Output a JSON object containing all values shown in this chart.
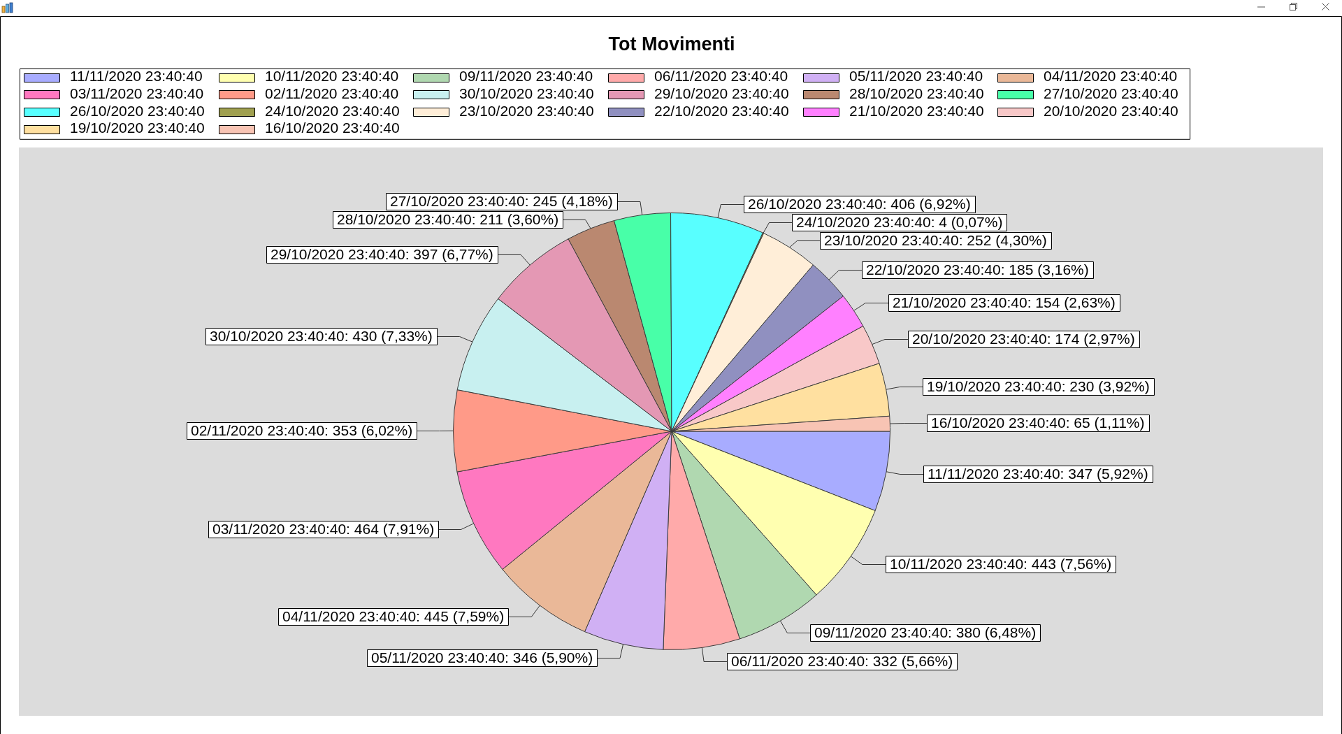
{
  "chart_data": {
    "type": "pie",
    "title": "Tot Movimenti",
    "categories": [
      "11/11/2020 23:40:40",
      "10/11/2020 23:40:40",
      "09/11/2020 23:40:40",
      "06/11/2020 23:40:40",
      "05/11/2020 23:40:40",
      "04/11/2020 23:40:40",
      "03/11/2020 23:40:40",
      "02/11/2020 23:40:40",
      "30/10/2020 23:40:40",
      "29/10/2020 23:40:40",
      "28/10/2020 23:40:40",
      "27/10/2020 23:40:40",
      "26/10/2020 23:40:40",
      "24/10/2020 23:40:40",
      "23/10/2020 23:40:40",
      "22/10/2020 23:40:40",
      "21/10/2020 23:40:40",
      "20/10/2020 23:40:40",
      "19/10/2020 23:40:40",
      "16/10/2020 23:40:40"
    ],
    "values": [
      347,
      443,
      380,
      332,
      346,
      445,
      464,
      353,
      430,
      397,
      211,
      245,
      406,
      4,
      252,
      185,
      154,
      174,
      230,
      65
    ],
    "colors": [
      "#a8acff",
      "#ffffb0",
      "#b0d8b0",
      "#ffaaaa",
      "#d0b0f4",
      "#eab898",
      "#ff78c0",
      "#ff9a88",
      "#c8f0f0",
      "#e498b4",
      "#ba8870",
      "#48ffa8",
      "#58ffff",
      "#a0a050",
      "#ffeed8",
      "#9090c0",
      "#ff80ff",
      "#f8c8c8",
      "#ffe0a0",
      "#f8c4b4"
    ],
    "value_labels": [
      "11/11/2020 23:40:40: 347 (5,92%)",
      "10/11/2020 23:40:40: 443 (7,56%)",
      "09/11/2020 23:40:40: 380 (6,48%)",
      "06/11/2020 23:40:40: 332 (5,66%)",
      "05/11/2020 23:40:40: 346 (5,90%)",
      "04/11/2020 23:40:40: 445 (7,59%)",
      "03/11/2020 23:40:40: 464 (7,91%)",
      "02/11/2020 23:40:40: 353 (6,02%)",
      "30/10/2020 23:40:40: 430 (7,33%)",
      "29/10/2020 23:40:40: 397 (6,77%)",
      "28/10/2020 23:40:40: 211 (3,60%)",
      "27/10/2020 23:40:40: 245 (4,18%)",
      "26/10/2020 23:40:40: 406 (6,92%)",
      "24/10/2020 23:40:40: 4 (0,07%)",
      "23/10/2020 23:40:40: 252 (4,30%)",
      "22/10/2020 23:40:40: 185 (3,16%)",
      "21/10/2020 23:40:40: 154 (2,63%)",
      "20/10/2020 23:40:40: 174 (2,97%)",
      "19/10/2020 23:40:40: 230 (3,92%)",
      "16/10/2020 23:40:40: 65 (1,11%)"
    ],
    "legend": "top"
  }
}
